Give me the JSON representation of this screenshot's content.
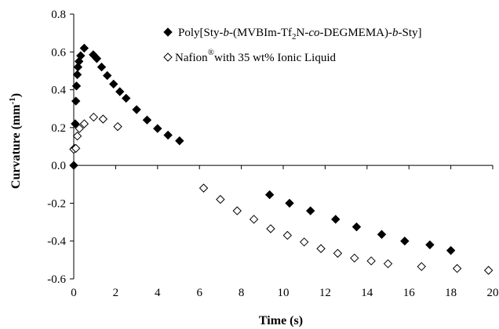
{
  "chart_data": {
    "type": "scatter",
    "xlabel": "Time (s)",
    "ylabel_main": "Curvature (mm",
    "ylabel_sup": "-1",
    "ylabel_tail": ")",
    "xlim": [
      0,
      20
    ],
    "ylim": [
      -0.6,
      0.8
    ],
    "xticks": [
      0,
      2,
      4,
      6,
      8,
      10,
      12,
      14,
      16,
      18,
      20
    ],
    "yticks": [
      -0.6,
      -0.4,
      -0.2,
      0.0,
      0.2,
      0.4,
      0.6,
      0.8
    ],
    "ytick_labels": [
      "-0.6",
      "-0.4",
      "-0.2",
      "0.0",
      "0.2",
      "0.4",
      "0.6",
      "0.8"
    ],
    "legend_placement": "top-right",
    "series": [
      {
        "name_parts": [
          "Poly[Sty-",
          "b",
          "-(MVBIm-Tf",
          "2",
          "N-",
          "co",
          "-DEGMEMA)-",
          "b",
          "-Sty]"
        ],
        "marker": "filled-diamond",
        "color": "#000000",
        "points": [
          [
            0.0,
            0.0
          ],
          [
            0.03,
            0.09
          ],
          [
            0.07,
            0.22
          ],
          [
            0.1,
            0.34
          ],
          [
            0.13,
            0.42
          ],
          [
            0.17,
            0.48
          ],
          [
            0.2,
            0.52
          ],
          [
            0.25,
            0.55
          ],
          [
            0.33,
            0.58
          ],
          [
            0.5,
            0.62
          ],
          [
            0.93,
            0.585
          ],
          [
            1.1,
            0.565
          ],
          [
            1.33,
            0.52
          ],
          [
            1.6,
            0.475
          ],
          [
            1.9,
            0.43
          ],
          [
            2.2,
            0.39
          ],
          [
            2.5,
            0.355
          ],
          [
            3.0,
            0.295
          ],
          [
            3.5,
            0.24
          ],
          [
            4.0,
            0.195
          ],
          [
            4.5,
            0.16
          ],
          [
            5.05,
            0.13
          ],
          [
            9.35,
            -0.155
          ],
          [
            10.3,
            -0.2
          ],
          [
            11.3,
            -0.24
          ],
          [
            12.5,
            -0.285
          ],
          [
            13.5,
            -0.325
          ],
          [
            14.7,
            -0.365
          ],
          [
            15.8,
            -0.4
          ],
          [
            17.0,
            -0.42
          ],
          [
            18.0,
            -0.45
          ]
        ]
      },
      {
        "name_parts": [
          "Nafion",
          "®",
          "with 35 wt% Ionic Liquid"
        ],
        "marker": "open-diamond",
        "color": "#000000",
        "points": [
          [
            0.0,
            0.085
          ],
          [
            0.1,
            0.09
          ],
          [
            0.17,
            0.155
          ],
          [
            0.27,
            0.195
          ],
          [
            0.5,
            0.22
          ],
          [
            0.95,
            0.255
          ],
          [
            1.4,
            0.245
          ],
          [
            2.1,
            0.205
          ],
          [
            6.2,
            -0.12
          ],
          [
            7.0,
            -0.18
          ],
          [
            7.8,
            -0.24
          ],
          [
            8.6,
            -0.285
          ],
          [
            9.4,
            -0.335
          ],
          [
            10.2,
            -0.37
          ],
          [
            11.0,
            -0.405
          ],
          [
            11.8,
            -0.44
          ],
          [
            12.6,
            -0.465
          ],
          [
            13.4,
            -0.49
          ],
          [
            14.2,
            -0.505
          ],
          [
            15.0,
            -0.52
          ],
          [
            16.6,
            -0.535
          ],
          [
            18.3,
            -0.545
          ],
          [
            19.8,
            -0.555
          ]
        ]
      }
    ]
  }
}
